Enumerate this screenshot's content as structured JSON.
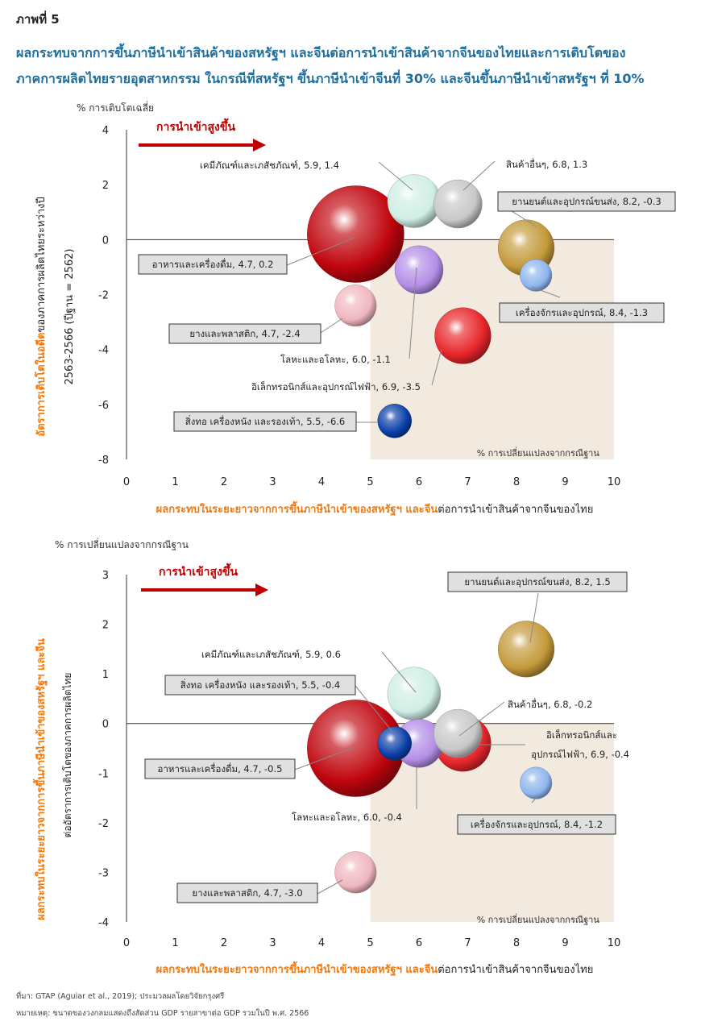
{
  "figure": {
    "label": "ภาพที่ 5",
    "title_line1": "ผลกระทบจากการขึ้นภาษีนำเข้าสินค้าของสหรัฐฯ และจีนต่อการนำเข้าสินค้าจากจีนของไทยและการเติบโตของ",
    "title_line2": "ภาคการผลิตไทยรายอุตสาหกรรม ในกรณีที่สหรัฐฯ ขึ้นภาษีนำเข้าจีนที่ 30% และจีนขึ้นภาษีนำเข้าสหรัฐฯ ที่ 10%"
  },
  "colors": {
    "food": "#c0050e",
    "chem": "#cfeee5",
    "other": "#c8c8c8",
    "auto": "#c49a3a",
    "mach": "#8eb6ee",
    "rubber": "#f0b7bf",
    "metal": "#b48ee6",
    "elec": "#e8262b",
    "textile": "#0a3fa8",
    "shade": "#f2e9df",
    "arrow": "#c00000",
    "orange": "#f07a10",
    "label_box": "#e0e0e0"
  },
  "chart_data": [
    {
      "type": "scatter",
      "variant": "bubble",
      "y_unit": "% การเติบโตเฉลี่ย",
      "ylabel_orange": "อัตราการเติบโตในอดีต",
      "ylabel_black": "ของภาคการผลิตไทยระหว่างปี",
      "ylabel_line2": "2563-2566 (ปีฐาน = 2562)",
      "xlabel_orange": "ผลกระทบในระยะยาวจากการขึ้นภาษีนำเข้าของสหรัฐฯ และจีน",
      "xlabel_black": "ต่อการนำเข้าสินค้าจากจีนของไทย",
      "x_ticks": [
        "0",
        "1",
        "2",
        "3",
        "4",
        "5",
        "6",
        "7",
        "8",
        "9",
        "10"
      ],
      "y_ticks": [
        "4",
        "2",
        "0",
        "-2",
        "-4",
        "-6",
        "-8"
      ],
      "xlim": [
        0,
        10
      ],
      "ylim": [
        -8,
        4
      ],
      "arrow_label": "การนำเข้าสูงขึ้น",
      "shade_label": "% การเปลี่ยนแปลงจากกรณีฐาน",
      "points": [
        {
          "key": "food",
          "label": "อาหารและเครื่องดื่ม, 4.7, 0.2",
          "x": 4.7,
          "y": 0.2,
          "size": 1.0
        },
        {
          "key": "chem",
          "label": "เคมีภัณฑ์และเภสัชภัณฑ์, 5.9, 1.4",
          "x": 5.9,
          "y": 1.4,
          "size": 0.55
        },
        {
          "key": "other",
          "label": "สินค้าอื่นๆ, 6.8, 1.3",
          "x": 6.8,
          "y": 1.3,
          "size": 0.5
        },
        {
          "key": "auto",
          "label": "ยานยนต์และอุปกรณ์ขนส่ง, 8.2, -0.3",
          "x": 8.2,
          "y": -0.3,
          "size": 0.58
        },
        {
          "key": "mach",
          "label": "เครื่องจักรและอุปกรณ์, 8.4, -1.3",
          "x": 8.4,
          "y": -1.3,
          "size": 0.33
        },
        {
          "key": "rubber",
          "label": "ยางและพลาสติก, 4.7, -2.4",
          "x": 4.7,
          "y": -2.4,
          "size": 0.43
        },
        {
          "key": "metal",
          "label": "โลหะและอโลหะ, 6.0, -1.1",
          "x": 6.0,
          "y": -1.1,
          "size": 0.5
        },
        {
          "key": "elec",
          "label": "อิเล็กทรอนิกส์และอุปกรณ์ไฟฟ้า, 6.9, -3.5",
          "x": 6.9,
          "y": -3.5,
          "size": 0.58
        },
        {
          "key": "textile",
          "label": "สิ่งทอ เครื่องหนัง และรองเท้า, 5.5, -6.6",
          "x": 5.5,
          "y": -6.6,
          "size": 0.35
        }
      ]
    },
    {
      "type": "scatter",
      "variant": "bubble",
      "y_unit": "% การเปลี่ยนแปลงจากกรณีฐาน",
      "ylabel_orange": "ผลกระทบในระยะยาวจากการขึ้นภาษีนำเข้าของสหรัฐฯ และจีน",
      "ylabel_black": "ต่ออัตราการเติบโตของภาคการผลิตไทย",
      "xlabel_orange": "ผลกระทบในระยะยาวจากการขึ้นภาษีนำเข้าของสหรัฐฯ และจีน",
      "xlabel_black": "ต่อการนำเข้าสินค้าจากจีนของไทย",
      "x_ticks": [
        "0",
        "1",
        "2",
        "3",
        "4",
        "5",
        "6",
        "7",
        "8",
        "9",
        "10"
      ],
      "y_ticks": [
        "3",
        "2",
        "1",
        "0",
        "-1",
        "-2",
        "-3",
        "-4"
      ],
      "xlim": [
        0,
        10
      ],
      "ylim": [
        -4,
        3
      ],
      "arrow_label": "การนำเข้าสูงขึ้น",
      "shade_label": "% การเปลี่ยนแปลงจากกรณีฐาน",
      "points": [
        {
          "key": "food",
          "label": "อาหารและเครื่องดื่ม, 4.7, -0.5",
          "x": 4.7,
          "y": -0.5,
          "size": 1.0
        },
        {
          "key": "chem",
          "label": "เคมีภัณฑ์และเภสัชภัณฑ์, 5.9, 0.6",
          "x": 5.9,
          "y": 0.6,
          "size": 0.55
        },
        {
          "key": "elec",
          "label": "อิเล็กทรอนิกส์และ อุปกรณ์ไฟฟ้า, 6.9, -0.4",
          "x": 6.9,
          "y": -0.4,
          "size": 0.58
        },
        {
          "key": "metal",
          "label": "โลหะและอโลหะ, 6.0, -0.4",
          "x": 6.0,
          "y": -0.4,
          "size": 0.5
        },
        {
          "key": "textile",
          "label": "สิ่งทอ เครื่องหนัง และรองเท้า, 5.5, -0.4",
          "x": 5.5,
          "y": -0.4,
          "size": 0.35
        },
        {
          "key": "other",
          "label": "สินค้าอื่นๆ, 6.8, -0.2",
          "x": 6.8,
          "y": -0.2,
          "size": 0.5
        },
        {
          "key": "auto",
          "label": "ยานยนต์และอุปกรณ์ขนส่ง, 8.2, 1.5",
          "x": 8.2,
          "y": 1.5,
          "size": 0.58
        },
        {
          "key": "mach",
          "label": "เครื่องจักรและอุปกรณ์, 8.4, -1.2",
          "x": 8.4,
          "y": -1.2,
          "size": 0.33
        },
        {
          "key": "rubber",
          "label": "ยางและพลาสติก, 4.7, -3.0",
          "x": 4.7,
          "y": -3.0,
          "size": 0.43
        }
      ]
    }
  ],
  "footer": {
    "source": "ที่มา: GTAP (Aguiar et al., 2019); ประมวลผลโดยวิจัยกรุงศรี",
    "note": "หมายเหตุ: ขนาดของวงกลมแสดงถึงสัดส่วน GDP รายสาขาต่อ GDP รวมในปี พ.ศ. 2566"
  }
}
